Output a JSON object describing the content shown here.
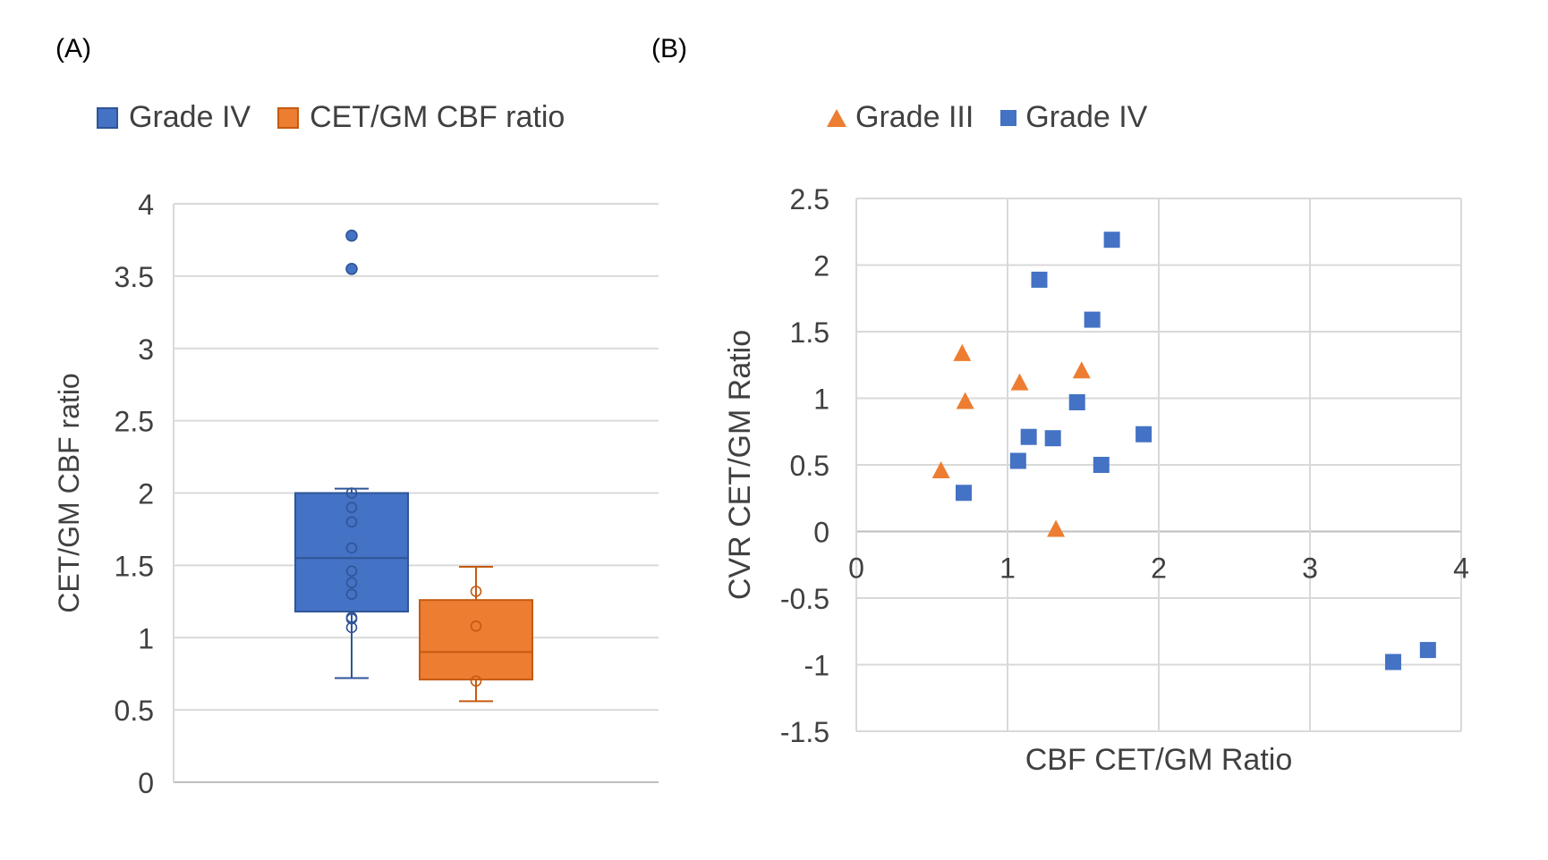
{
  "colors": {
    "blue": "#4472C4",
    "blue_edge": "#2F5597",
    "orange": "#ED7D31",
    "orange_edge": "#C55A11",
    "grid": "#D9D9D9",
    "axis_text": "#404040"
  },
  "chart_data": [
    {
      "panel_label": "(A)",
      "type": "box",
      "ylabel": "CET/GM CBF ratio",
      "ylim": [
        0,
        4
      ],
      "yticks": [
        0,
        0.5,
        1,
        1.5,
        2,
        2.5,
        3,
        3.5,
        4
      ],
      "ytick_labels": [
        "0",
        "0.5",
        "1",
        "1.5",
        "2",
        "2.5",
        "3",
        "3.5",
        "4"
      ],
      "grid": true,
      "legend_position": "top",
      "legend": [
        "Grade IV",
        "CET/GM CBF ratio"
      ],
      "series": [
        {
          "name": "Grade IV",
          "color": "blue",
          "whisker_low": 0.72,
          "q1": 1.18,
          "median": 1.55,
          "q3": 2.0,
          "whisker_high": 2.03,
          "points": [
            1.07,
            1.13,
            1.14,
            1.3,
            1.38,
            1.46,
            1.62,
            1.8,
            1.9,
            2.0
          ],
          "outliers": [
            3.55,
            3.78
          ]
        },
        {
          "name": "CET/GM CBF ratio",
          "color": "orange",
          "whisker_low": 0.56,
          "q1": 0.71,
          "median": 0.9,
          "q3": 1.26,
          "whisker_high": 1.49,
          "points": [
            0.7,
            1.08,
            1.32
          ],
          "outliers": []
        }
      ]
    },
    {
      "panel_label": "(B)",
      "type": "scatter",
      "xlabel": "CBF CET/GM Ratio",
      "ylabel": "CVR CET/GM Ratio",
      "xlim": [
        0,
        4
      ],
      "ylim": [
        -1.5,
        2.5
      ],
      "xticks": [
        0,
        1,
        2,
        3,
        4
      ],
      "xtick_labels": [
        "0",
        "1",
        "2",
        "3",
        "4"
      ],
      "yticks": [
        -1.5,
        -1,
        -0.5,
        0,
        0.5,
        1,
        1.5,
        2,
        2.5
      ],
      "ytick_labels": [
        "-1.5",
        "-1",
        "-0.5",
        "0",
        "0.5",
        "1",
        "1.5",
        "2",
        "2.5"
      ],
      "grid": true,
      "legend_position": "top",
      "series": [
        {
          "name": "Grade III",
          "marker": "triangle",
          "color": "orange",
          "x": [
            0.56,
            0.7,
            0.72,
            1.08,
            1.32,
            1.49
          ],
          "y": [
            0.46,
            1.34,
            0.98,
            1.12,
            0.02,
            1.21
          ]
        },
        {
          "name": "Grade IV",
          "marker": "square",
          "color": "blue",
          "x": [
            0.71,
            1.07,
            1.14,
            1.21,
            1.3,
            1.46,
            1.56,
            1.62,
            1.69,
            1.9,
            3.55,
            3.78
          ],
          "y": [
            0.29,
            0.53,
            0.71,
            1.89,
            0.7,
            0.97,
            1.59,
            0.5,
            2.19,
            0.73,
            -0.98,
            -0.89
          ]
        }
      ]
    }
  ]
}
